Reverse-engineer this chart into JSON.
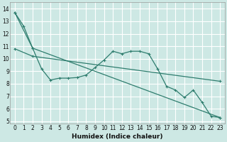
{
  "xlabel": "Humidex (Indice chaleur)",
  "background_color": "#cde8e4",
  "grid_color": "#ffffff",
  "line_color": "#2e7d6e",
  "xlim": [
    -0.5,
    23.5
  ],
  "ylim": [
    4.8,
    14.5
  ],
  "yticks": [
    5,
    6,
    7,
    8,
    9,
    10,
    11,
    12,
    13,
    14
  ],
  "xticks": [
    0,
    1,
    2,
    3,
    4,
    5,
    6,
    7,
    8,
    9,
    10,
    11,
    12,
    13,
    14,
    15,
    16,
    17,
    18,
    19,
    20,
    21,
    22,
    23
  ],
  "line1_x": [
    0,
    1,
    2,
    3,
    4,
    5,
    6,
    7,
    8,
    9,
    10,
    11,
    12,
    13,
    14,
    15,
    16,
    17,
    18,
    19,
    20,
    21,
    22,
    23
  ],
  "line1_y": [
    13.7,
    12.6,
    10.85,
    9.2,
    8.3,
    8.45,
    8.45,
    8.5,
    8.7,
    9.3,
    9.9,
    10.6,
    10.4,
    10.6,
    10.6,
    10.4,
    9.2,
    7.8,
    7.5,
    6.9,
    7.5,
    6.5,
    5.4,
    5.3
  ],
  "line2_x": [
    0,
    2,
    23
  ],
  "line2_y": [
    13.7,
    10.85,
    5.3
  ],
  "line3_x": [
    0,
    2,
    23
  ],
  "line3_y": [
    10.8,
    10.2,
    8.2
  ]
}
